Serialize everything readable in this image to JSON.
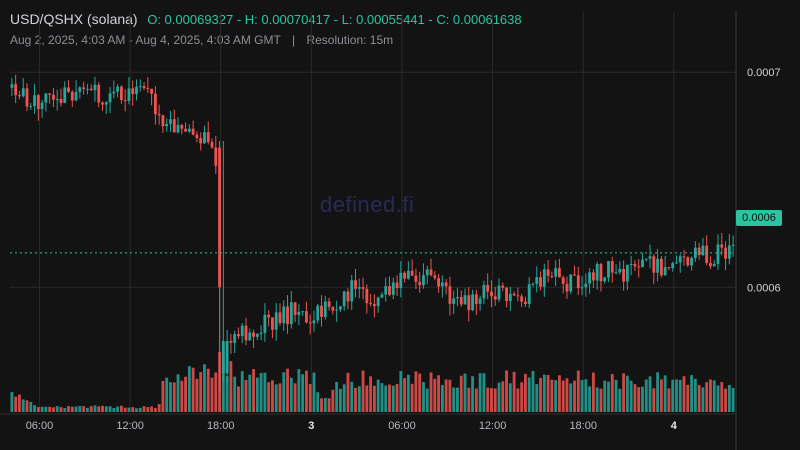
{
  "header": {
    "symbol": "USD/QSHX (solana)",
    "ohlc_text": "O: 0.00069327 - H: 0.00070417 - L: 0.00055441 - C: 0.00061638",
    "date_range": "Aug 2, 2025, 4:03 AM - Aug 4, 2025, 4:03 AM GMT",
    "separator": "|",
    "resolution": "Resolution: 15m"
  },
  "watermark": "defined.fi",
  "colors": {
    "up": "#26a69a",
    "down": "#ef5350",
    "background": "#131313",
    "grid": "#2a2a2a",
    "badge": "#26c6a0"
  },
  "chart_data": {
    "type": "candlestick",
    "interval": "15m",
    "x_start": "2025-08-02T04:03Z",
    "x_end": "2025-08-04T04:03Z",
    "ylim": [
      0.000542,
      0.000728
    ],
    "current_price": 0.000616,
    "current_price_label": "0.0006",
    "x_tick_labels": [
      "06:00",
      "12:00",
      "18:00",
      "3",
      "06:00",
      "12:00",
      "18:00",
      "4"
    ],
    "y_tick_labels": [
      "0.0007",
      "0.0006"
    ],
    "grid": true,
    "series": [
      {
        "points": [
          {
            "t": "2025-08-02T04:00Z",
            "v": 0.000693
          },
          {
            "t": "2025-08-02T05:00Z",
            "v": 0.000688
          },
          {
            "t": "2025-08-02T06:00Z",
            "v": 0.000687
          },
          {
            "t": "2025-08-02T07:00Z",
            "v": 0.00069
          },
          {
            "t": "2025-08-02T09:00Z",
            "v": 0.00069
          },
          {
            "t": "2025-08-02T11:00Z",
            "v": 0.000688
          },
          {
            "t": "2025-08-02T12:00Z",
            "v": 0.000691
          },
          {
            "t": "2025-08-02T13:30Z",
            "v": 0.00069
          },
          {
            "t": "2025-08-02T14:00Z",
            "v": 0.000678
          },
          {
            "t": "2025-08-02T15:00Z",
            "v": 0.000672
          },
          {
            "t": "2025-08-02T16:00Z",
            "v": 0.000673
          },
          {
            "t": "2025-08-02T17:00Z",
            "v": 0.00067
          },
          {
            "t": "2025-08-02T17:45Z",
            "v": 0.000665
          },
          {
            "t": "2025-08-02T18:15Z",
            "v": 0.000575
          },
          {
            "t": "2025-08-02T19:00Z",
            "v": 0.000578
          },
          {
            "t": "2025-08-02T21:00Z",
            "v": 0.000583
          },
          {
            "t": "2025-08-02T23:00Z",
            "v": 0.000589
          },
          {
            "t": "2025-08-03T00:00Z",
            "v": 0.000585
          },
          {
            "t": "2025-08-03T02:00Z",
            "v": 0.000592
          },
          {
            "t": "2025-08-03T03:00Z",
            "v": 0.0006
          },
          {
            "t": "2025-08-03T04:00Z",
            "v": 0.000595
          },
          {
            "t": "2025-08-03T06:00Z",
            "v": 0.000602
          },
          {
            "t": "2025-08-03T07:00Z",
            "v": 0.000606
          },
          {
            "t": "2025-08-03T08:00Z",
            "v": 0.000604
          },
          {
            "t": "2025-08-03T10:00Z",
            "v": 0.000592
          },
          {
            "t": "2025-08-03T11:00Z",
            "v": 0.000596
          },
          {
            "t": "2025-08-03T12:00Z",
            "v": 0.000598
          },
          {
            "t": "2025-08-03T14:00Z",
            "v": 0.000594
          },
          {
            "t": "2025-08-03T15:00Z",
            "v": 0.000603
          },
          {
            "t": "2025-08-03T16:00Z",
            "v": 0.000605
          },
          {
            "t": "2025-08-03T17:00Z",
            "v": 0.000602
          },
          {
            "t": "2025-08-03T18:00Z",
            "v": 0.000603
          },
          {
            "t": "2025-08-03T20:00Z",
            "v": 0.000609
          },
          {
            "t": "2025-08-03T21:00Z",
            "v": 0.000607
          },
          {
            "t": "2025-08-03T22:00Z",
            "v": 0.000612
          },
          {
            "t": "2025-08-04T00:00Z",
            "v": 0.000609
          },
          {
            "t": "2025-08-04T01:00Z",
            "v": 0.000614
          },
          {
            "t": "2025-08-04T03:00Z",
            "v": 0.000615
          },
          {
            "t": "2025-08-04T04:00Z",
            "v": 0.000616
          }
        ],
        "volume_profile": [
          {
            "t": "2025-08-02T04:00Z",
            "v": 0.45
          },
          {
            "t": "2025-08-02T05:45Z",
            "v": 0.12
          },
          {
            "t": "2025-08-02T13:45Z",
            "v": 0.1
          },
          {
            "t": "2025-08-02T14:00Z",
            "v": 0.6
          },
          {
            "t": "2025-08-02T15:00Z",
            "v": 0.82
          },
          {
            "t": "2025-08-02T17:45Z",
            "v": 0.8
          },
          {
            "t": "2025-08-02T18:15Z",
            "v": 1.0
          },
          {
            "t": "2025-08-02T18:45Z",
            "v": 0.75
          },
          {
            "t": "2025-08-03T00:00Z",
            "v": 0.72
          },
          {
            "t": "2025-08-03T00:45Z",
            "v": 0.25
          },
          {
            "t": "2025-08-03T01:15Z",
            "v": 0.4
          },
          {
            "t": "2025-08-03T02:00Z",
            "v": 0.7
          },
          {
            "t": "2025-08-04T04:00Z",
            "v": 0.7
          }
        ]
      }
    ]
  }
}
